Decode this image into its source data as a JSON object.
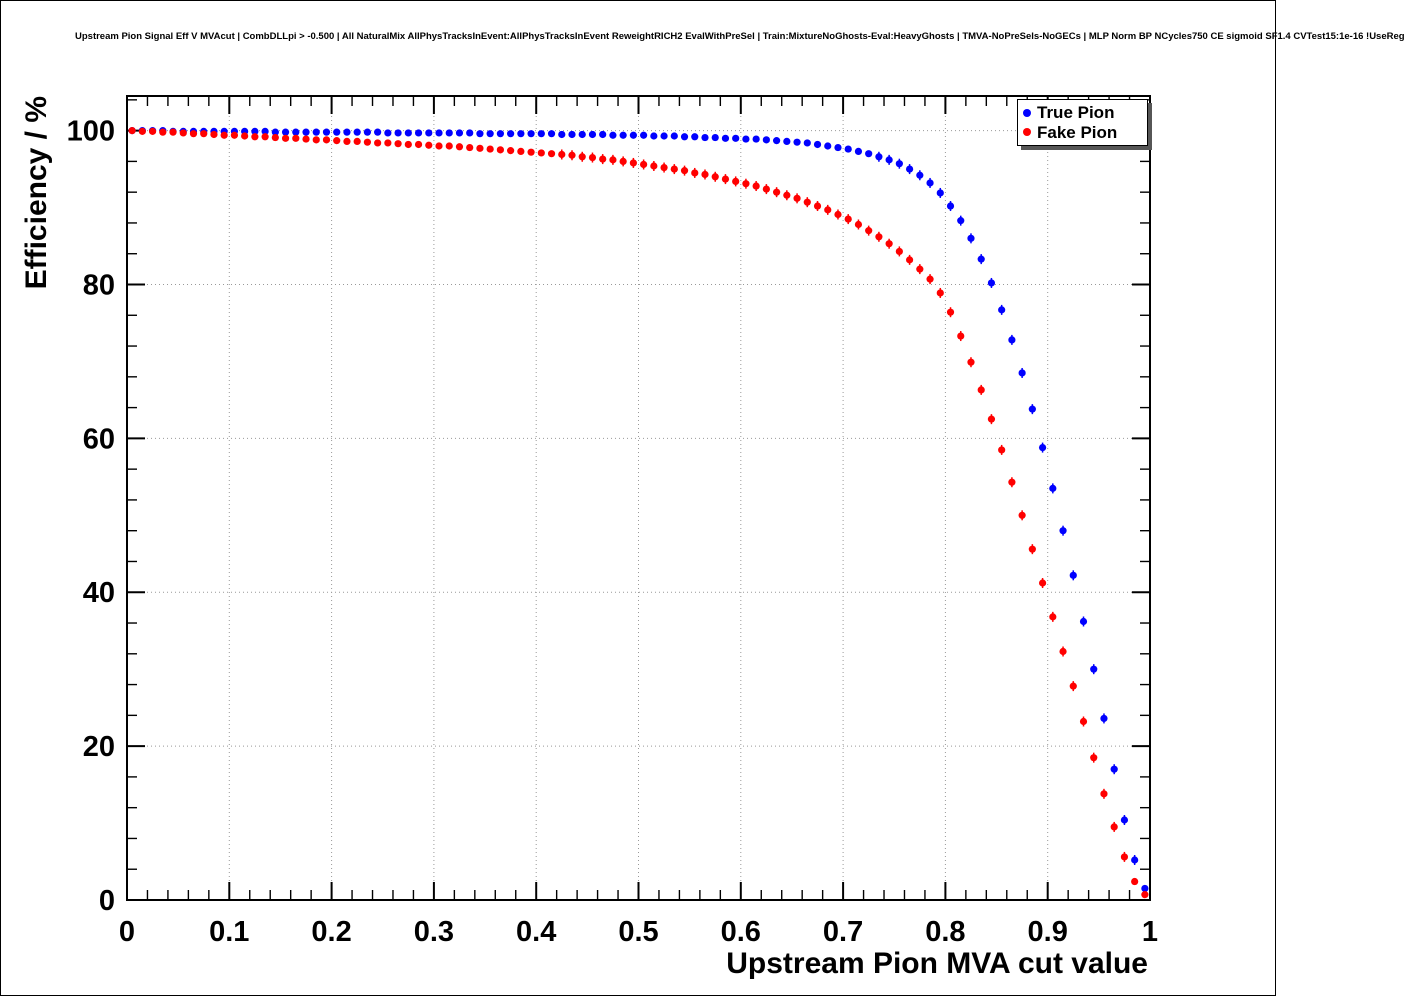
{
  "chart_data": {
    "type": "scatter",
    "title": "Upstream Pion Signal Eff V MVAcut | CombDLLpi > -0.500 | All NaturalMix AllPhysTracksInEvent:AllPhysTracksInEvent ReweightRICH2 EvalWithPreSel | Train:MixtureNoGhosts-Eval:HeavyGhosts | TMVA-NoPreSels-NoGECs | MLP Norm BP NCycles750 CE sigmoid SF1.4 CVTest15:1e-16 !UseReg",
    "xlabel": "Upstream Pion MVA cut value",
    "ylabel": "Efficiency / %",
    "xlim": [
      0,
      1
    ],
    "ylim": [
      0,
      104.5
    ],
    "grid": true,
    "legend_position": "top-right",
    "marker": "filled-circle",
    "xticks": [
      0,
      0.1,
      0.2,
      0.3,
      0.4,
      0.5,
      0.6,
      0.7,
      0.8,
      0.9,
      1
    ],
    "xtick_labels": [
      "0",
      "0.1",
      "0.2",
      "0.3",
      "0.4",
      "0.5",
      "0.6",
      "0.7",
      "0.8",
      "0.9",
      "1"
    ],
    "yticks": [
      0,
      20,
      40,
      60,
      80,
      100
    ],
    "ytick_labels": [
      "0",
      "20",
      "40",
      "60",
      "80",
      "100"
    ],
    "x": [
      0.005,
      0.015,
      0.025,
      0.035,
      0.045,
      0.055,
      0.065,
      0.075,
      0.085,
      0.095,
      0.105,
      0.115,
      0.125,
      0.135,
      0.145,
      0.155,
      0.165,
      0.175,
      0.185,
      0.195,
      0.205,
      0.215,
      0.225,
      0.235,
      0.245,
      0.255,
      0.265,
      0.275,
      0.285,
      0.295,
      0.305,
      0.315,
      0.325,
      0.335,
      0.345,
      0.355,
      0.365,
      0.375,
      0.385,
      0.395,
      0.405,
      0.415,
      0.425,
      0.435,
      0.445,
      0.455,
      0.465,
      0.475,
      0.485,
      0.495,
      0.505,
      0.515,
      0.525,
      0.535,
      0.545,
      0.555,
      0.565,
      0.575,
      0.585,
      0.595,
      0.605,
      0.615,
      0.625,
      0.635,
      0.645,
      0.655,
      0.665,
      0.675,
      0.685,
      0.695,
      0.705,
      0.715,
      0.725,
      0.735,
      0.745,
      0.755,
      0.765,
      0.775,
      0.785,
      0.795,
      0.805,
      0.815,
      0.825,
      0.835,
      0.845,
      0.855,
      0.865,
      0.875,
      0.885,
      0.895,
      0.905,
      0.915,
      0.925,
      0.935,
      0.945,
      0.955,
      0.965,
      0.975,
      0.985,
      0.995
    ],
    "series": [
      {
        "name": "True Pion",
        "color": "#0000ff",
        "values": [
          100,
          100,
          100,
          100,
          99.9,
          99.9,
          99.9,
          99.9,
          99.9,
          99.9,
          99.9,
          99.9,
          99.9,
          99.9,
          99.8,
          99.8,
          99.8,
          99.8,
          99.8,
          99.8,
          99.8,
          99.8,
          99.8,
          99.8,
          99.8,
          99.7,
          99.7,
          99.7,
          99.7,
          99.7,
          99.7,
          99.7,
          99.7,
          99.7,
          99.6,
          99.6,
          99.6,
          99.6,
          99.6,
          99.6,
          99.6,
          99.6,
          99.5,
          99.5,
          99.5,
          99.5,
          99.5,
          99.4,
          99.4,
          99.4,
          99.4,
          99.3,
          99.3,
          99.3,
          99.2,
          99.2,
          99.1,
          99.1,
          99.0,
          99.0,
          98.9,
          98.9,
          98.8,
          98.7,
          98.6,
          98.5,
          98.4,
          98.2,
          98.0,
          97.8,
          97.6,
          97.3,
          97.0,
          96.6,
          96.2,
          95.7,
          95.0,
          94.2,
          93.2,
          91.9,
          90.2,
          88.3,
          86.0,
          83.3,
          80.2,
          76.7,
          72.8,
          68.5,
          63.8,
          58.8,
          53.5,
          48.0,
          42.2,
          36.2,
          30.0,
          23.6,
          17.0,
          10.4,
          5.2,
          1.5
        ]
      },
      {
        "name": "Fake Pion",
        "color": "#ff0000",
        "values": [
          100,
          99.9,
          99.9,
          99.8,
          99.8,
          99.7,
          99.6,
          99.6,
          99.5,
          99.4,
          99.4,
          99.3,
          99.2,
          99.2,
          99.1,
          99.0,
          99.0,
          98.9,
          98.8,
          98.8,
          98.7,
          98.6,
          98.6,
          98.5,
          98.4,
          98.4,
          98.3,
          98.2,
          98.2,
          98.1,
          98.0,
          98.0,
          97.9,
          97.8,
          97.7,
          97.6,
          97.5,
          97.4,
          97.3,
          97.2,
          97.1,
          97.0,
          96.9,
          96.8,
          96.6,
          96.5,
          96.3,
          96.2,
          96.0,
          95.8,
          95.6,
          95.4,
          95.2,
          95.0,
          94.8,
          94.5,
          94.3,
          94.0,
          93.7,
          93.4,
          93.1,
          92.8,
          92.4,
          92.0,
          91.6,
          91.2,
          90.7,
          90.2,
          89.7,
          89.1,
          88.5,
          87.8,
          87.0,
          86.2,
          85.3,
          84.3,
          83.2,
          82.0,
          80.7,
          78.9,
          76.4,
          73.3,
          69.9,
          66.3,
          62.5,
          58.5,
          54.3,
          50.0,
          45.6,
          41.2,
          36.8,
          32.3,
          27.8,
          23.2,
          18.5,
          13.8,
          9.5,
          5.6,
          2.4,
          0.7
        ]
      }
    ]
  }
}
